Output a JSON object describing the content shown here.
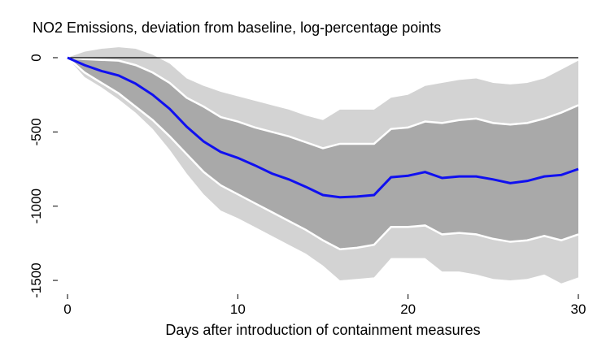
{
  "chart_data": {
    "type": "line",
    "title": "NO2 Emissions, deviation from baseline, log-percentage points",
    "x_label": "Days after introduction of containment measures",
    "x": [
      0,
      1,
      2,
      3,
      4,
      5,
      6,
      7,
      8,
      9,
      10,
      11,
      12,
      13,
      14,
      15,
      16,
      17,
      18,
      19,
      20,
      21,
      22,
      23,
      24,
      25,
      26,
      27,
      28,
      29,
      30
    ],
    "series": [
      {
        "color": "#1010f0",
        "values": [
          0,
          -50,
          -90,
          -120,
          -175,
          -250,
          -345,
          -465,
          -565,
          -635,
          -675,
          -725,
          -780,
          -820,
          -870,
          -925,
          -940,
          -935,
          -925,
          -805,
          -795,
          -770,
          -810,
          -800,
          -800,
          -820,
          -845,
          -830,
          -800,
          -790,
          -750
        ]
      }
    ],
    "bands": [
      {
        "color": "#d3d3d3",
        "upper": [
          0,
          40,
          60,
          70,
          60,
          20,
          -40,
          -140,
          -190,
          -230,
          -260,
          -290,
          -320,
          -350,
          -390,
          -420,
          -350,
          -350,
          -350,
          -270,
          -250,
          -190,
          -170,
          -150,
          -140,
          -170,
          -180,
          -170,
          -140,
          -80,
          -20
        ],
        "lower": [
          0,
          -130,
          -200,
          -280,
          -370,
          -480,
          -620,
          -780,
          -920,
          -1030,
          -1080,
          -1140,
          -1200,
          -1260,
          -1320,
          -1400,
          -1500,
          -1490,
          -1480,
          -1350,
          -1350,
          -1350,
          -1440,
          -1440,
          -1460,
          -1490,
          -1500,
          -1490,
          -1460,
          -1520,
          -1480
        ]
      },
      {
        "color": "#a9a9a9",
        "edge_color": "#ffffff",
        "upper": [
          0,
          -10,
          -15,
          -20,
          -50,
          -100,
          -170,
          -270,
          -330,
          -400,
          -430,
          -470,
          -500,
          -530,
          -570,
          -610,
          -580,
          -580,
          -580,
          -480,
          -470,
          -430,
          -440,
          -420,
          -410,
          -440,
          -450,
          -440,
          -410,
          -370,
          -320
        ],
        "lower": [
          0,
          -100,
          -170,
          -240,
          -330,
          -420,
          -530,
          -650,
          -770,
          -860,
          -920,
          -980,
          -1040,
          -1100,
          -1160,
          -1230,
          -1290,
          -1280,
          -1260,
          -1140,
          -1140,
          -1130,
          -1190,
          -1180,
          -1190,
          -1220,
          -1240,
          -1230,
          -1200,
          -1230,
          -1190
        ]
      }
    ],
    "reference_line": 0,
    "xlim": [
      0,
      30
    ],
    "xticks": [
      0,
      10,
      20,
      30
    ],
    "ylim": [
      -1550,
      100
    ],
    "yticks": [
      0,
      -500,
      -1000,
      -1500
    ]
  }
}
